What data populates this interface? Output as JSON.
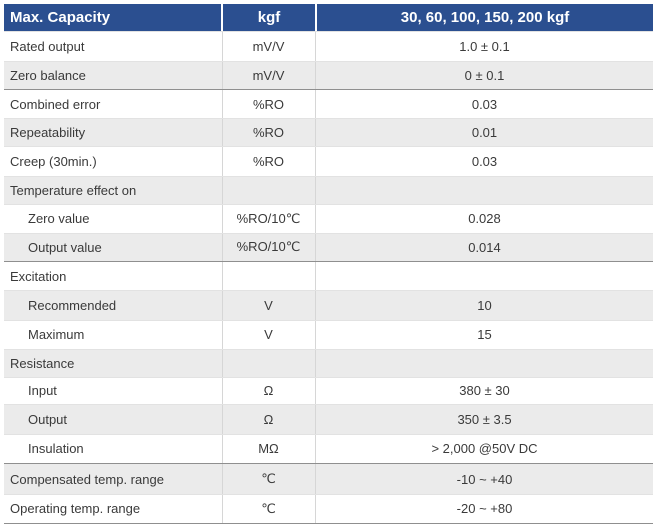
{
  "header": {
    "col1": "Max. Capacity",
    "col2": "kgf",
    "col3": "30, 60, 100, 150, 200 kgf"
  },
  "rows": [
    {
      "label": "Rated output",
      "unit": "mV/V",
      "value": "1.0 ± 0.1"
    },
    {
      "label": "Zero balance",
      "unit": "mV/V",
      "value": "0 ± 0.1"
    },
    {
      "label": "Combined error",
      "unit": "%RO",
      "value": "0.03"
    },
    {
      "label": "Repeatability",
      "unit": "%RO",
      "value": "0.01"
    },
    {
      "label": "Creep (30min.)",
      "unit": "%RO",
      "value": "0.03"
    },
    {
      "label": "Temperature effect on",
      "unit": "",
      "value": ""
    },
    {
      "label": "Zero value",
      "unit": "%RO/10℃",
      "value": "0.028"
    },
    {
      "label": "Output  value",
      "unit": "%RO/10℃",
      "value": "0.014"
    },
    {
      "label": "Excitation",
      "unit": "",
      "value": ""
    },
    {
      "label": "Recommended",
      "unit": "V",
      "value": "10"
    },
    {
      "label": "Maximum",
      "unit": "V",
      "value": "15"
    },
    {
      "label": "Resistance",
      "unit": "",
      "value": ""
    },
    {
      "label": "Input",
      "unit": "Ω",
      "value": "380 ± 30"
    },
    {
      "label": "Output",
      "unit": "Ω",
      "value": "350 ± 3.5"
    },
    {
      "label": "Insulation",
      "unit": "MΩ",
      "value": "> 2,000 @50V DC"
    },
    {
      "label": "Compensated temp. range",
      "unit": "℃",
      "value": "-10 ~ +40"
    },
    {
      "label": "Operating temp. range",
      "unit": "℃",
      "value": "-20 ~ +80"
    }
  ]
}
